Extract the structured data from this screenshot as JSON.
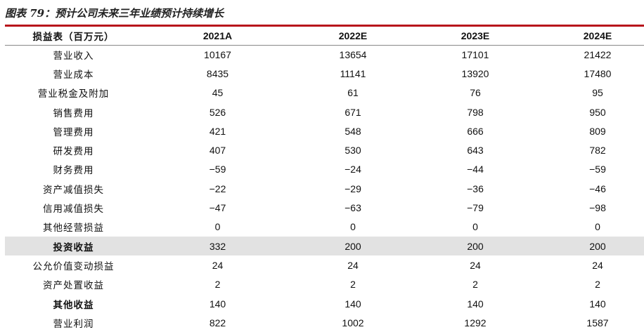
{
  "caption": "图表 79：预计公司未来三年业绩预计持续增长",
  "table": {
    "columns": [
      "损益表（百万元）",
      "2021A",
      "2022E",
      "2023E",
      "2024E"
    ],
    "rows": [
      {
        "label": "营业收入",
        "values": [
          "10167",
          "13654",
          "17101",
          "21422"
        ],
        "bold": false,
        "highlight": false
      },
      {
        "label": "营业成本",
        "values": [
          "8435",
          "11141",
          "13920",
          "17480"
        ],
        "bold": false,
        "highlight": false
      },
      {
        "label": "营业税金及附加",
        "values": [
          "45",
          "61",
          "76",
          "95"
        ],
        "bold": false,
        "highlight": false
      },
      {
        "label": "销售费用",
        "values": [
          "526",
          "671",
          "798",
          "950"
        ],
        "bold": false,
        "highlight": false
      },
      {
        "label": "管理费用",
        "values": [
          "421",
          "548",
          "666",
          "809"
        ],
        "bold": false,
        "highlight": false
      },
      {
        "label": "研发费用",
        "values": [
          "407",
          "530",
          "643",
          "782"
        ],
        "bold": false,
        "highlight": false
      },
      {
        "label": "财务费用",
        "values": [
          "−59",
          "−24",
          "−44",
          "−59"
        ],
        "bold": false,
        "highlight": false
      },
      {
        "label": "资产减值损失",
        "values": [
          "−22",
          "−29",
          "−36",
          "−46"
        ],
        "bold": false,
        "highlight": false
      },
      {
        "label": "信用减值损失",
        "values": [
          "−47",
          "−63",
          "−79",
          "−98"
        ],
        "bold": false,
        "highlight": false
      },
      {
        "label": "其他经营损益",
        "values": [
          "0",
          "0",
          "0",
          "0"
        ],
        "bold": false,
        "highlight": false
      },
      {
        "label": "投资收益",
        "values": [
          "332",
          "200",
          "200",
          "200"
        ],
        "bold": true,
        "highlight": true
      },
      {
        "label": "公允价值变动损益",
        "values": [
          "24",
          "24",
          "24",
          "24"
        ],
        "bold": false,
        "highlight": false
      },
      {
        "label": "资产处置收益",
        "values": [
          "2",
          "2",
          "2",
          "2"
        ],
        "bold": false,
        "highlight": false
      },
      {
        "label": "其他收益",
        "values": [
          "140",
          "140",
          "140",
          "140"
        ],
        "bold": true,
        "highlight": false
      },
      {
        "label": "营业利润",
        "values": [
          "822",
          "1002",
          "1292",
          "1587"
        ],
        "bold": false,
        "highlight": false
      }
    ]
  },
  "colors": {
    "rule": "#b8141b",
    "highlight_row": "#e2e2e2"
  }
}
